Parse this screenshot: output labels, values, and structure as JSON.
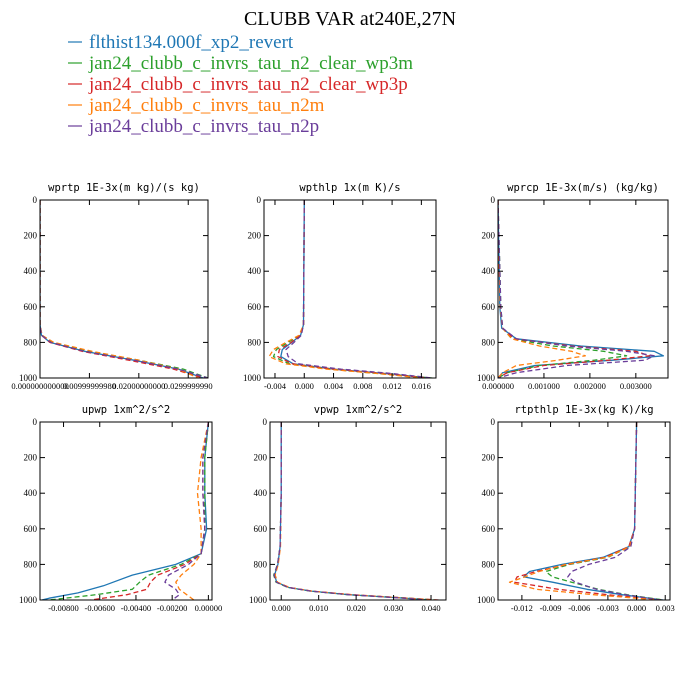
{
  "figure": {
    "title": "CLUBB VAR at240E,27N",
    "legend": [
      {
        "label": "flthist134.000f_xp2_revert",
        "color": "#1f77b4",
        "dash": "solid"
      },
      {
        "label": "jan24_clubb_c_invrs_tau_n2_clear_wp3m",
        "color": "#2ca02c",
        "dash": "dash"
      },
      {
        "label": "jan24_clubb_c_invrs_tau_n2_clear_wp3p",
        "color": "#d62728",
        "dash": "dash"
      },
      {
        "label": "jan24_clubb_c_invrs_tau_n2m",
        "color": "#ff7f0e",
        "dash": "dash"
      },
      {
        "label": "jan24_clubb_c_invrs_tau_n2p",
        "color": "#6a3d9a",
        "dash": "dash"
      }
    ]
  },
  "chart_data": [
    {
      "type": "line",
      "title": "wprtp  1E-3x(m kg)/(s kg)",
      "xlim": [
        0,
        0.034
      ],
      "ylim": [
        1000,
        0
      ],
      "xticks": [
        0,
        0.01,
        0.02,
        0.03
      ],
      "xticklabels": [
        "0.000000000000",
        "0.00999999980",
        "0.02000000000",
        "0.0299999990"
      ],
      "yticks": [
        0,
        200,
        400,
        600,
        800,
        1000
      ],
      "series": [
        {
          "p": [
            0,
            700,
            760,
            800,
            850,
            900,
            950,
            1000
          ],
          "x": [
            0,
            0,
            0.0003,
            0.002,
            0.009,
            0.019,
            0.028,
            0.033
          ]
        },
        {
          "p": [
            0,
            700,
            760,
            800,
            850,
            900,
            950,
            1000
          ],
          "x": [
            0,
            0,
            0.0004,
            0.0025,
            0.01,
            0.02,
            0.029,
            0.034
          ]
        },
        {
          "p": [
            0,
            700,
            760,
            800,
            850,
            900,
            950,
            1000
          ],
          "x": [
            0,
            0,
            0.0003,
            0.002,
            0.0085,
            0.018,
            0.027,
            0.033
          ]
        },
        {
          "p": [
            0,
            700,
            760,
            800,
            850,
            900,
            950,
            1000
          ],
          "x": [
            0,
            0,
            0.0004,
            0.0028,
            0.0105,
            0.02,
            0.028,
            0.032
          ]
        },
        {
          "p": [
            0,
            700,
            760,
            800,
            850,
            900,
            950,
            1000
          ],
          "x": [
            0,
            0,
            0.0003,
            0.0022,
            0.009,
            0.019,
            0.028,
            0.034
          ]
        }
      ]
    },
    {
      "type": "line",
      "title": "wpthlp  1x(m K)/s",
      "xlim": [
        -0.0055,
        0.018
      ],
      "ylim": [
        1000,
        0
      ],
      "xticks": [
        -0.004,
        0,
        0.004,
        0.008,
        0.012,
        0.016
      ],
      "xticklabels": [
        "-0.004",
        "0.000",
        "0.004",
        "0.008",
        "0.012",
        "0.016"
      ],
      "yticks": [
        0,
        200,
        400,
        600,
        800,
        1000
      ],
      "series": [
        {
          "p": [
            0,
            700,
            760,
            800,
            840,
            880,
            920,
            950,
            975,
            1000
          ],
          "x": [
            0,
            -0.0001,
            -0.0005,
            -0.0017,
            -0.003,
            -0.0032,
            -0.0015,
            0.004,
            0.011,
            0.017
          ]
        },
        {
          "p": [
            0,
            700,
            760,
            800,
            840,
            880,
            920,
            950,
            975,
            1000
          ],
          "x": [
            0,
            -0.0001,
            -0.0006,
            -0.0022,
            -0.0038,
            -0.0042,
            -0.002,
            0.0035,
            0.01,
            0.0175
          ]
        },
        {
          "p": [
            0,
            700,
            760,
            800,
            840,
            880,
            920,
            950,
            975,
            1000
          ],
          "x": [
            0,
            -0.0001,
            -0.0005,
            -0.0018,
            -0.0034,
            -0.0036,
            -0.0016,
            0.004,
            0.011,
            0.017
          ]
        },
        {
          "p": [
            0,
            700,
            760,
            800,
            840,
            880,
            920,
            950,
            975,
            1000
          ],
          "x": [
            0,
            -0.0001,
            -0.0007,
            -0.0025,
            -0.0042,
            -0.0048,
            -0.0025,
            0.003,
            0.01,
            0.016
          ]
        },
        {
          "p": [
            0,
            700,
            760,
            800,
            840,
            880,
            920,
            950,
            975,
            1000
          ],
          "x": [
            0,
            -0.0001,
            -0.0004,
            -0.0014,
            -0.0025,
            -0.0022,
            -0.0008,
            0.005,
            0.012,
            0.0175
          ]
        }
      ]
    },
    {
      "type": "line",
      "title": "wprcp  1E-3x(m/s) (kg/kg)",
      "xlim": [
        0,
        0.0037
      ],
      "ylim": [
        1000,
        0
      ],
      "xticks": [
        0,
        0.001,
        0.002,
        0.003
      ],
      "xticklabels": [
        "0.000000",
        "0.001000",
        "0.002000",
        "0.003000"
      ],
      "yticks": [
        0,
        200,
        400,
        600,
        800,
        1000
      ],
      "series": [
        {
          "p": [
            0,
            300,
            600,
            720,
            780,
            820,
            850,
            875,
            900,
            930,
            970,
            1000
          ],
          "x": [
            0,
            2e-05,
            4e-05,
            8e-05,
            0.0004,
            0.0018,
            0.0034,
            0.0036,
            0.0025,
            0.0008,
            0.0001,
            0
          ]
        },
        {
          "p": [
            0,
            300,
            600,
            720,
            780,
            820,
            850,
            875,
            900,
            930,
            970,
            1000
          ],
          "x": [
            0,
            3e-05,
            6e-05,
            0.0001,
            0.0003,
            0.0012,
            0.0023,
            0.0028,
            0.0021,
            0.0009,
            0.0002,
            0
          ]
        },
        {
          "p": [
            0,
            300,
            600,
            720,
            780,
            820,
            850,
            875,
            900,
            930,
            970,
            1000
          ],
          "x": [
            0,
            2e-05,
            5e-05,
            0.0001,
            0.00035,
            0.0016,
            0.003,
            0.0033,
            0.0024,
            0.001,
            0.0002,
            0
          ]
        },
        {
          "p": [
            0,
            300,
            600,
            720,
            780,
            820,
            850,
            875,
            900,
            930,
            970,
            1000
          ],
          "x": [
            0,
            2e-05,
            5e-05,
            0.0001,
            0.0003,
            0.0009,
            0.0016,
            0.0019,
            0.0013,
            0.0004,
            0.0001,
            0
          ]
        },
        {
          "p": [
            0,
            300,
            600,
            720,
            780,
            820,
            850,
            875,
            900,
            930,
            970,
            1000
          ],
          "x": [
            0,
            3e-05,
            6e-05,
            0.0001,
            0.0004,
            0.0015,
            0.0028,
            0.0034,
            0.0032,
            0.0015,
            0.0004,
            0
          ]
        }
      ]
    },
    {
      "type": "line",
      "title": "upwp   1xm^2/s^2",
      "xlim": [
        -0.0093,
        0.0002
      ],
      "ylim": [
        1000,
        0
      ],
      "xticks": [
        -0.008,
        -0.006,
        -0.004,
        -0.002,
        0
      ],
      "xticklabels": [
        "-0.00800",
        "-0.00600",
        "-0.00400",
        "-0.00200",
        "0.00000"
      ],
      "yticks": [
        0,
        200,
        400,
        600,
        800,
        1000
      ],
      "series": [
        {
          "p": [
            0,
            200,
            400,
            600,
            740,
            800,
            860,
            920,
            960,
            990,
            1000
          ],
          "x": [
            0,
            -0.0002,
            -0.0002,
            -0.0001,
            -0.0004,
            -0.0018,
            -0.0042,
            -0.0058,
            -0.0072,
            -0.0088,
            -0.0092
          ]
        },
        {
          "p": [
            0,
            200,
            400,
            600,
            740,
            800,
            860,
            900,
            940,
            970,
            1000
          ],
          "x": [
            0,
            -0.0002,
            -0.0002,
            -0.0002,
            -0.0004,
            -0.0015,
            -0.0033,
            -0.0038,
            -0.0042,
            -0.0062,
            -0.0088
          ]
        },
        {
          "p": [
            0,
            200,
            400,
            600,
            740,
            800,
            860,
            900,
            940,
            970,
            1000
          ],
          "x": [
            0,
            -0.0003,
            -0.0003,
            -0.0002,
            -0.0004,
            -0.0013,
            -0.0028,
            -0.0032,
            -0.0034,
            -0.0045,
            -0.0065
          ]
        },
        {
          "p": [
            0,
            200,
            400,
            600,
            740,
            800,
            860,
            900,
            940,
            970,
            1000
          ],
          "x": [
            0,
            -0.0004,
            -0.0006,
            -0.0004,
            -0.0004,
            -0.0008,
            -0.0015,
            -0.0018,
            -0.0016,
            -0.0012,
            -0.0008
          ]
        },
        {
          "p": [
            0,
            200,
            400,
            600,
            740,
            800,
            860,
            900,
            940,
            970,
            1000
          ],
          "x": [
            0,
            -0.0003,
            -0.0003,
            -0.0002,
            -0.0004,
            -0.0011,
            -0.0022,
            -0.0024,
            -0.0018,
            -0.0016,
            -0.002
          ]
        }
      ]
    },
    {
      "type": "line",
      "title": "vpwp   1xm^2/s^2",
      "xlim": [
        -0.003,
        0.044
      ],
      "ylim": [
        1000,
        0
      ],
      "xticks": [
        0,
        0.01,
        0.02,
        0.03,
        0.04
      ],
      "xticklabels": [
        "0.000",
        "0.010",
        "0.020",
        "0.030",
        "0.040"
      ],
      "yticks": [
        0,
        200,
        400,
        600,
        800,
        1000
      ],
      "series": [
        {
          "p": [
            0,
            400,
            700,
            800,
            860,
            900,
            930,
            950,
            970,
            990,
            1000
          ],
          "x": [
            0,
            0,
            -0.0003,
            -0.0009,
            -0.0018,
            -0.0012,
            0.002,
            0.008,
            0.018,
            0.033,
            0.04
          ]
        },
        {
          "p": [
            0,
            400,
            700,
            800,
            860,
            900,
            930,
            950,
            970,
            990,
            1000
          ],
          "x": [
            0,
            0,
            -0.0003,
            -0.001,
            -0.002,
            -0.0014,
            0.0018,
            0.0078,
            0.018,
            0.034,
            0.041
          ]
        },
        {
          "p": [
            0,
            400,
            700,
            800,
            860,
            900,
            930,
            950,
            970,
            990,
            1000
          ],
          "x": [
            0,
            0,
            -0.0003,
            -0.0009,
            -0.0017,
            -0.0011,
            0.0022,
            0.0082,
            0.019,
            0.034,
            0.042
          ]
        },
        {
          "p": [
            0,
            400,
            700,
            800,
            860,
            900,
            930,
            950,
            970,
            990,
            1000
          ],
          "x": [
            0,
            0,
            -0.0002,
            -0.0008,
            -0.0016,
            -0.001,
            0.0021,
            0.0081,
            0.0185,
            0.0335,
            0.04
          ]
        },
        {
          "p": [
            0,
            400,
            700,
            800,
            860,
            900,
            930,
            950,
            970,
            990,
            1000
          ],
          "x": [
            0,
            0,
            -0.0003,
            -0.001,
            -0.0019,
            -0.0013,
            0.0019,
            0.0079,
            0.018,
            0.033,
            0.039
          ]
        }
      ]
    },
    {
      "type": "line",
      "title": "rtpthlp  1E-3x(kg K)/kg",
      "xlim": [
        -0.0145,
        0.0035
      ],
      "ylim": [
        1000,
        0
      ],
      "xticks": [
        -0.012,
        -0.009,
        -0.006,
        -0.003,
        0,
        0.003
      ],
      "xticklabels": [
        "-0.012",
        "-0.009",
        "-0.006",
        "-0.003",
        "0.000",
        "0.003"
      ],
      "yticks": [
        0,
        200,
        400,
        600,
        800,
        1000
      ],
      "series": [
        {
          "p": [
            0,
            600,
            700,
            760,
            800,
            840,
            870,
            900,
            940,
            970,
            1000
          ],
          "x": [
            0,
            -0.0002,
            -0.0008,
            -0.0035,
            -0.0078,
            -0.0112,
            -0.0118,
            -0.0088,
            -0.0052,
            -0.0015,
            0.0028
          ]
        },
        {
          "p": [
            0,
            600,
            700,
            760,
            800,
            840,
            870,
            900,
            940,
            970,
            1000
          ],
          "x": [
            0,
            -0.0002,
            -0.0007,
            -0.003,
            -0.007,
            -0.0095,
            -0.0088,
            -0.0068,
            -0.004,
            -0.001,
            0.0028
          ]
        },
        {
          "p": [
            0,
            600,
            700,
            760,
            800,
            840,
            870,
            900,
            940,
            970,
            1000
          ],
          "x": [
            0,
            -0.0002,
            -0.0008,
            -0.0033,
            -0.0072,
            -0.0105,
            -0.0125,
            -0.0128,
            -0.0082,
            -0.003,
            0.0026
          ]
        },
        {
          "p": [
            0,
            600,
            700,
            760,
            800,
            840,
            870,
            900,
            940,
            970,
            1000
          ],
          "x": [
            0,
            -0.0002,
            -0.0007,
            -0.0031,
            -0.0074,
            -0.0102,
            -0.0117,
            -0.0133,
            -0.0105,
            -0.0045,
            0.0022
          ]
        },
        {
          "p": [
            0,
            600,
            700,
            760,
            800,
            840,
            870,
            900,
            940,
            970,
            1000
          ],
          "x": [
            0,
            -0.0002,
            -0.0006,
            -0.0022,
            -0.005,
            -0.0068,
            -0.0072,
            -0.0064,
            -0.0042,
            -0.0012,
            0.0025
          ]
        }
      ]
    }
  ]
}
